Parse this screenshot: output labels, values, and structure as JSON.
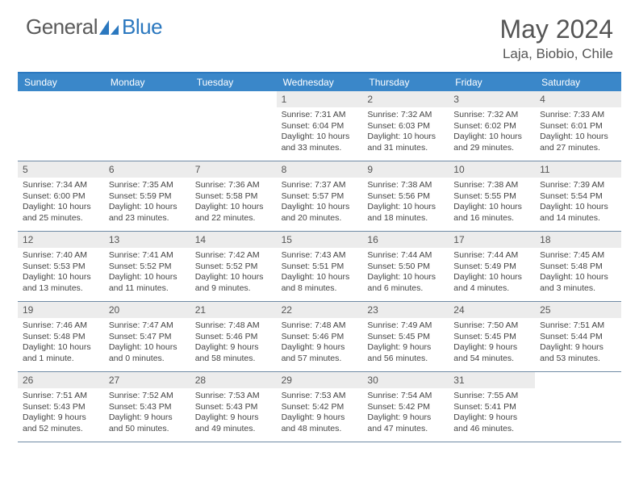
{
  "brand": {
    "word1": "General",
    "word2": "Blue"
  },
  "title": "May 2024",
  "location": "Laja, Biobio, Chile",
  "colors": {
    "header_bg": "#3a87c9",
    "header_border": "#2b78bf",
    "daynum_bg": "#ececec",
    "week_border": "#6f8aa5",
    "text": "#444444",
    "logo_blue": "#2b78bf"
  },
  "day_headers": [
    "Sunday",
    "Monday",
    "Tuesday",
    "Wednesday",
    "Thursday",
    "Friday",
    "Saturday"
  ],
  "weeks": [
    [
      {
        "n": "",
        "sr": "",
        "ss": "",
        "dl": ""
      },
      {
        "n": "",
        "sr": "",
        "ss": "",
        "dl": ""
      },
      {
        "n": "",
        "sr": "",
        "ss": "",
        "dl": ""
      },
      {
        "n": "1",
        "sr": "7:31 AM",
        "ss": "6:04 PM",
        "dl": "10 hours and 33 minutes."
      },
      {
        "n": "2",
        "sr": "7:32 AM",
        "ss": "6:03 PM",
        "dl": "10 hours and 31 minutes."
      },
      {
        "n": "3",
        "sr": "7:32 AM",
        "ss": "6:02 PM",
        "dl": "10 hours and 29 minutes."
      },
      {
        "n": "4",
        "sr": "7:33 AM",
        "ss": "6:01 PM",
        "dl": "10 hours and 27 minutes."
      }
    ],
    [
      {
        "n": "5",
        "sr": "7:34 AM",
        "ss": "6:00 PM",
        "dl": "10 hours and 25 minutes."
      },
      {
        "n": "6",
        "sr": "7:35 AM",
        "ss": "5:59 PM",
        "dl": "10 hours and 23 minutes."
      },
      {
        "n": "7",
        "sr": "7:36 AM",
        "ss": "5:58 PM",
        "dl": "10 hours and 22 minutes."
      },
      {
        "n": "8",
        "sr": "7:37 AM",
        "ss": "5:57 PM",
        "dl": "10 hours and 20 minutes."
      },
      {
        "n": "9",
        "sr": "7:38 AM",
        "ss": "5:56 PM",
        "dl": "10 hours and 18 minutes."
      },
      {
        "n": "10",
        "sr": "7:38 AM",
        "ss": "5:55 PM",
        "dl": "10 hours and 16 minutes."
      },
      {
        "n": "11",
        "sr": "7:39 AM",
        "ss": "5:54 PM",
        "dl": "10 hours and 14 minutes."
      }
    ],
    [
      {
        "n": "12",
        "sr": "7:40 AM",
        "ss": "5:53 PM",
        "dl": "10 hours and 13 minutes."
      },
      {
        "n": "13",
        "sr": "7:41 AM",
        "ss": "5:52 PM",
        "dl": "10 hours and 11 minutes."
      },
      {
        "n": "14",
        "sr": "7:42 AM",
        "ss": "5:52 PM",
        "dl": "10 hours and 9 minutes."
      },
      {
        "n": "15",
        "sr": "7:43 AM",
        "ss": "5:51 PM",
        "dl": "10 hours and 8 minutes."
      },
      {
        "n": "16",
        "sr": "7:44 AM",
        "ss": "5:50 PM",
        "dl": "10 hours and 6 minutes."
      },
      {
        "n": "17",
        "sr": "7:44 AM",
        "ss": "5:49 PM",
        "dl": "10 hours and 4 minutes."
      },
      {
        "n": "18",
        "sr": "7:45 AM",
        "ss": "5:48 PM",
        "dl": "10 hours and 3 minutes."
      }
    ],
    [
      {
        "n": "19",
        "sr": "7:46 AM",
        "ss": "5:48 PM",
        "dl": "10 hours and 1 minute."
      },
      {
        "n": "20",
        "sr": "7:47 AM",
        "ss": "5:47 PM",
        "dl": "10 hours and 0 minutes."
      },
      {
        "n": "21",
        "sr": "7:48 AM",
        "ss": "5:46 PM",
        "dl": "9 hours and 58 minutes."
      },
      {
        "n": "22",
        "sr": "7:48 AM",
        "ss": "5:46 PM",
        "dl": "9 hours and 57 minutes."
      },
      {
        "n": "23",
        "sr": "7:49 AM",
        "ss": "5:45 PM",
        "dl": "9 hours and 56 minutes."
      },
      {
        "n": "24",
        "sr": "7:50 AM",
        "ss": "5:45 PM",
        "dl": "9 hours and 54 minutes."
      },
      {
        "n": "25",
        "sr": "7:51 AM",
        "ss": "5:44 PM",
        "dl": "9 hours and 53 minutes."
      }
    ],
    [
      {
        "n": "26",
        "sr": "7:51 AM",
        "ss": "5:43 PM",
        "dl": "9 hours and 52 minutes."
      },
      {
        "n": "27",
        "sr": "7:52 AM",
        "ss": "5:43 PM",
        "dl": "9 hours and 50 minutes."
      },
      {
        "n": "28",
        "sr": "7:53 AM",
        "ss": "5:43 PM",
        "dl": "9 hours and 49 minutes."
      },
      {
        "n": "29",
        "sr": "7:53 AM",
        "ss": "5:42 PM",
        "dl": "9 hours and 48 minutes."
      },
      {
        "n": "30",
        "sr": "7:54 AM",
        "ss": "5:42 PM",
        "dl": "9 hours and 47 minutes."
      },
      {
        "n": "31",
        "sr": "7:55 AM",
        "ss": "5:41 PM",
        "dl": "9 hours and 46 minutes."
      },
      {
        "n": "",
        "sr": "",
        "ss": "",
        "dl": ""
      }
    ]
  ],
  "labels": {
    "sunrise": "Sunrise:",
    "sunset": "Sunset:",
    "daylight": "Daylight:"
  }
}
